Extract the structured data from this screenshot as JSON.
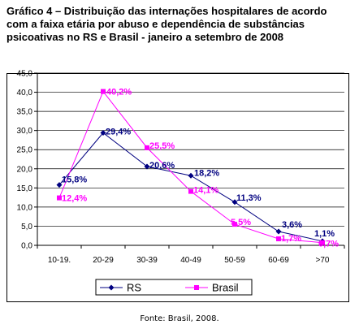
{
  "title_lines": [
    "Gráfico 4 – Distribuição das internações hospitalares de acordo",
    "com a faixa etária por abuso e dependência de substâncias",
    "psicoativas no RS e Brasil - janeiro a setembro de 2008"
  ],
  "source": "Fonte: Brasil, 2008.",
  "chart_data": {
    "type": "line",
    "categories": [
      "10-19.",
      "20-29",
      "30-39",
      "40-49",
      "50-59",
      "60-69",
      ">70"
    ],
    "ylim": [
      0,
      45
    ],
    "yticks": [
      "0,0",
      "5,0",
      "10,0",
      "15,0",
      "20,0",
      "25,0",
      "30,0",
      "35,0",
      "40,0",
      "45,0"
    ],
    "grid": true,
    "legend_position": "bottom",
    "series": [
      {
        "name": "RS",
        "color": "#000080",
        "marker": "diamond",
        "values": [
          15.8,
          29.4,
          20.6,
          18.2,
          11.3,
          3.6,
          1.1
        ],
        "labels": [
          "15,8%",
          "29,4%",
          "20,6%",
          "18,2%",
          "11,3%",
          "3,6%",
          "1,1%"
        ]
      },
      {
        "name": "Brasil",
        "color": "#ff00ff",
        "marker": "square",
        "values": [
          12.4,
          40.2,
          25.5,
          14.1,
          5.5,
          1.7,
          0.7
        ],
        "labels": [
          "12,4%",
          "40,2%",
          "25,5%",
          "14,1%",
          "5,5%",
          "1,7%",
          "0,7%"
        ]
      }
    ]
  }
}
